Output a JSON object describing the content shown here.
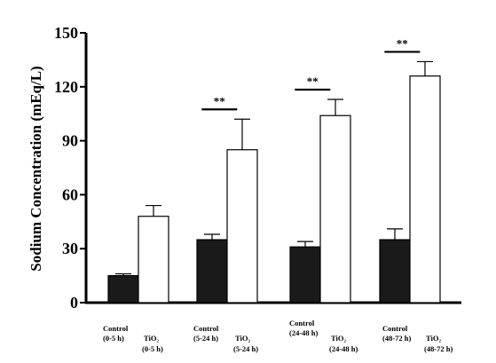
{
  "chart_data": {
    "type": "bar",
    "ylabel": "Sodium Concentration (mEq/L)",
    "ylim": [
      0,
      150
    ],
    "yticks": [
      "0",
      "30",
      "60",
      "90",
      "120",
      "150"
    ],
    "grid": false,
    "legend": "none",
    "groups": [
      {
        "bars": [
          {
            "label": [
              "Control",
              "(0-5 h)"
            ],
            "value": 15,
            "error": 1,
            "fill": "#1a1a1a"
          },
          {
            "label": [
              "TiO₂",
              "(0-5 h)"
            ],
            "value": 48,
            "error": 6,
            "fill": "#ffffff"
          }
        ],
        "significance": ""
      },
      {
        "bars": [
          {
            "label": [
              "Control",
              "(5-24 h)"
            ],
            "value": 35,
            "error": 3,
            "fill": "#1a1a1a"
          },
          {
            "label": [
              "TiO₂",
              "(5-24 h)"
            ],
            "value": 85,
            "error": 17,
            "fill": "#ffffff"
          }
        ],
        "significance": "**"
      },
      {
        "bars": [
          {
            "label": [
              "Control",
              "(24-48 h)"
            ],
            "value": 31,
            "error": 3,
            "fill": "#1a1a1a"
          },
          {
            "label": [
              "TiO₂",
              "(24-48 h)"
            ],
            "value": 104,
            "error": 9,
            "fill": "#ffffff"
          }
        ],
        "significance": "**"
      },
      {
        "bars": [
          {
            "label": [
              "Control",
              "(48-72 h)"
            ],
            "value": 35,
            "error": 6,
            "fill": "#1a1a1a"
          },
          {
            "label": [
              "TiO₂",
              "(48-72 h)"
            ],
            "value": 126,
            "error": 8,
            "fill": "#ffffff"
          }
        ],
        "significance": "**"
      }
    ]
  }
}
